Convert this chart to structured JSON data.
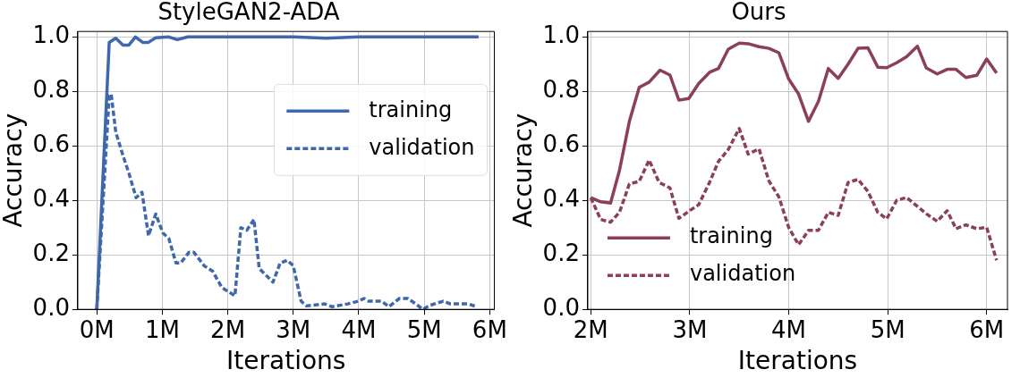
{
  "chart_data": [
    {
      "type": "line",
      "title": "StyleGAN2-ADA",
      "xlabel": "Iterations",
      "ylabel": "Accuracy",
      "xlim": [
        -0.29,
        6.07
      ],
      "ylim": [
        0,
        1.02
      ],
      "xticks": [
        {
          "value": 0,
          "label": "0M"
        },
        {
          "value": 1,
          "label": "1M"
        },
        {
          "value": 2,
          "label": "2M"
        },
        {
          "value": 3,
          "label": "3M"
        },
        {
          "value": 4,
          "label": "4M"
        },
        {
          "value": 5,
          "label": "5M"
        },
        {
          "value": 6,
          "label": "6M"
        }
      ],
      "yticks": [
        {
          "value": 0,
          "label": "0.0"
        },
        {
          "value": 0.2,
          "label": "0.2"
        },
        {
          "value": 0.4,
          "label": "0.4"
        },
        {
          "value": 0.6,
          "label": "0.6"
        },
        {
          "value": 0.8,
          "label": "0.8"
        },
        {
          "value": 1,
          "label": "1.0"
        }
      ],
      "grid": true,
      "legend": "right",
      "series": [
        {
          "name": "training",
          "color": "#3f68ab",
          "line_style": "solid",
          "x": [
            0,
            0.19,
            0.29,
            0.4,
            0.49,
            0.59,
            0.7,
            0.79,
            0.9,
            1.1,
            1.23,
            1.39,
            2,
            3,
            3.5,
            4,
            5,
            5.83
          ],
          "values": [
            0,
            0.98,
            0.995,
            0.97,
            0.97,
            1,
            0.98,
            0.98,
            0.997,
            1,
            0.99,
            1,
            1,
            1,
            0.995,
            1,
            1,
            1
          ]
        },
        {
          "name": "validation",
          "color": "#3f68ab",
          "line_style": "dashed",
          "x": [
            0,
            0.19,
            0.22,
            0.29,
            0.4,
            0.49,
            0.6,
            0.69,
            0.79,
            0.9,
            1.01,
            1.1,
            1.21,
            1.28,
            1.41,
            1.48,
            1.64,
            1.77,
            1.91,
            2.11,
            2.2,
            2.29,
            2.4,
            2.48,
            2.69,
            2.8,
            2.91,
            3,
            3.12,
            3.2,
            3.48,
            3.59,
            3.83,
            3.99,
            4.08,
            4.15,
            4.35,
            4.46,
            4.62,
            4.75,
            4.87,
            4.98,
            5.09,
            5.29,
            5.4,
            5.67,
            5.8
          ],
          "values": [
            0,
            0.785,
            0.79,
            0.65,
            0.565,
            0.5,
            0.41,
            0.43,
            0.27,
            0.35,
            0.28,
            0.26,
            0.17,
            0.17,
            0.21,
            0.21,
            0.16,
            0.14,
            0.08,
            0.05,
            0.3,
            0.29,
            0.33,
            0.15,
            0.1,
            0.17,
            0.18,
            0.16,
            0.03,
            0.013,
            0.02,
            0.01,
            0.02,
            0.03,
            0.04,
            0.03,
            0.03,
            0.01,
            0.04,
            0.04,
            0.02,
            0,
            0.015,
            0.03,
            0.02,
            0.02,
            0.01
          ]
        }
      ]
    },
    {
      "type": "line",
      "title": "Ours",
      "xlabel": "Iterations",
      "ylabel": "Accuracy",
      "xlim": [
        1.97,
        6.21
      ],
      "ylim": [
        0,
        1.02
      ],
      "xticks": [
        {
          "value": 2,
          "label": "2M"
        },
        {
          "value": 3,
          "label": "3M"
        },
        {
          "value": 4,
          "label": "4M"
        },
        {
          "value": 5,
          "label": "5M"
        },
        {
          "value": 6,
          "label": "6M"
        }
      ],
      "yticks": [
        {
          "value": 0,
          "label": "0.0"
        },
        {
          "value": 0.2,
          "label": "0.2"
        },
        {
          "value": 0.4,
          "label": "0.4"
        },
        {
          "value": 0.6,
          "label": "0.6"
        },
        {
          "value": 0.8,
          "label": "0.8"
        },
        {
          "value": 1,
          "label": "1.0"
        }
      ],
      "grid": true,
      "legend": "bottom left",
      "series": [
        {
          "name": "training",
          "color": "#8b3f5a",
          "line_style": "solid",
          "x": [
            2,
            2.1,
            2.2,
            2.29,
            2.39,
            2.49,
            2.59,
            2.7,
            2.8,
            2.89,
            2.99,
            3.09,
            3.2,
            3.29,
            3.39,
            3.5,
            3.59,
            3.7,
            3.8,
            3.9,
            4,
            4.1,
            4.2,
            4.3,
            4.4,
            4.5,
            4.6,
            4.7,
            4.8,
            4.9,
            4.99,
            5.09,
            5.19,
            5.3,
            5.39,
            5.5,
            5.6,
            5.69,
            5.79,
            5.9,
            6,
            6.1
          ],
          "values": [
            0.41,
            0.395,
            0.39,
            0.51,
            0.69,
            0.815,
            0.834,
            0.878,
            0.86,
            0.768,
            0.774,
            0.829,
            0.87,
            0.884,
            0.955,
            0.977,
            0.975,
            0.964,
            0.958,
            0.942,
            0.845,
            0.79,
            0.69,
            0.763,
            0.884,
            0.848,
            0.9,
            0.958,
            0.96,
            0.889,
            0.887,
            0.905,
            0.927,
            0.966,
            0.886,
            0.864,
            0.881,
            0.881,
            0.851,
            0.859,
            0.919,
            0.867
          ]
        },
        {
          "name": "validation",
          "color": "#8b3f5a",
          "line_style": "dashed",
          "x": [
            2,
            2.1,
            2.2,
            2.29,
            2.39,
            2.49,
            2.59,
            2.69,
            2.8,
            2.89,
            2.99,
            3.09,
            3.2,
            3.29,
            3.39,
            3.5,
            3.59,
            3.7,
            3.8,
            3.9,
            4,
            4.1,
            4.2,
            4.3,
            4.4,
            4.5,
            4.6,
            4.7,
            4.8,
            4.9,
            4.99,
            5.09,
            5.19,
            5.3,
            5.39,
            5.5,
            5.6,
            5.69,
            5.79,
            5.9,
            6,
            6.1
          ],
          "values": [
            0.41,
            0.33,
            0.32,
            0.356,
            0.46,
            0.47,
            0.548,
            0.466,
            0.446,
            0.334,
            0.36,
            0.384,
            0.466,
            0.543,
            0.587,
            0.664,
            0.57,
            0.589,
            0.471,
            0.413,
            0.3,
            0.237,
            0.29,
            0.29,
            0.356,
            0.345,
            0.466,
            0.477,
            0.433,
            0.356,
            0.332,
            0.4,
            0.411,
            0.378,
            0.351,
            0.323,
            0.362,
            0.296,
            0.31,
            0.296,
            0.301,
            0.18
          ]
        }
      ]
    }
  ]
}
